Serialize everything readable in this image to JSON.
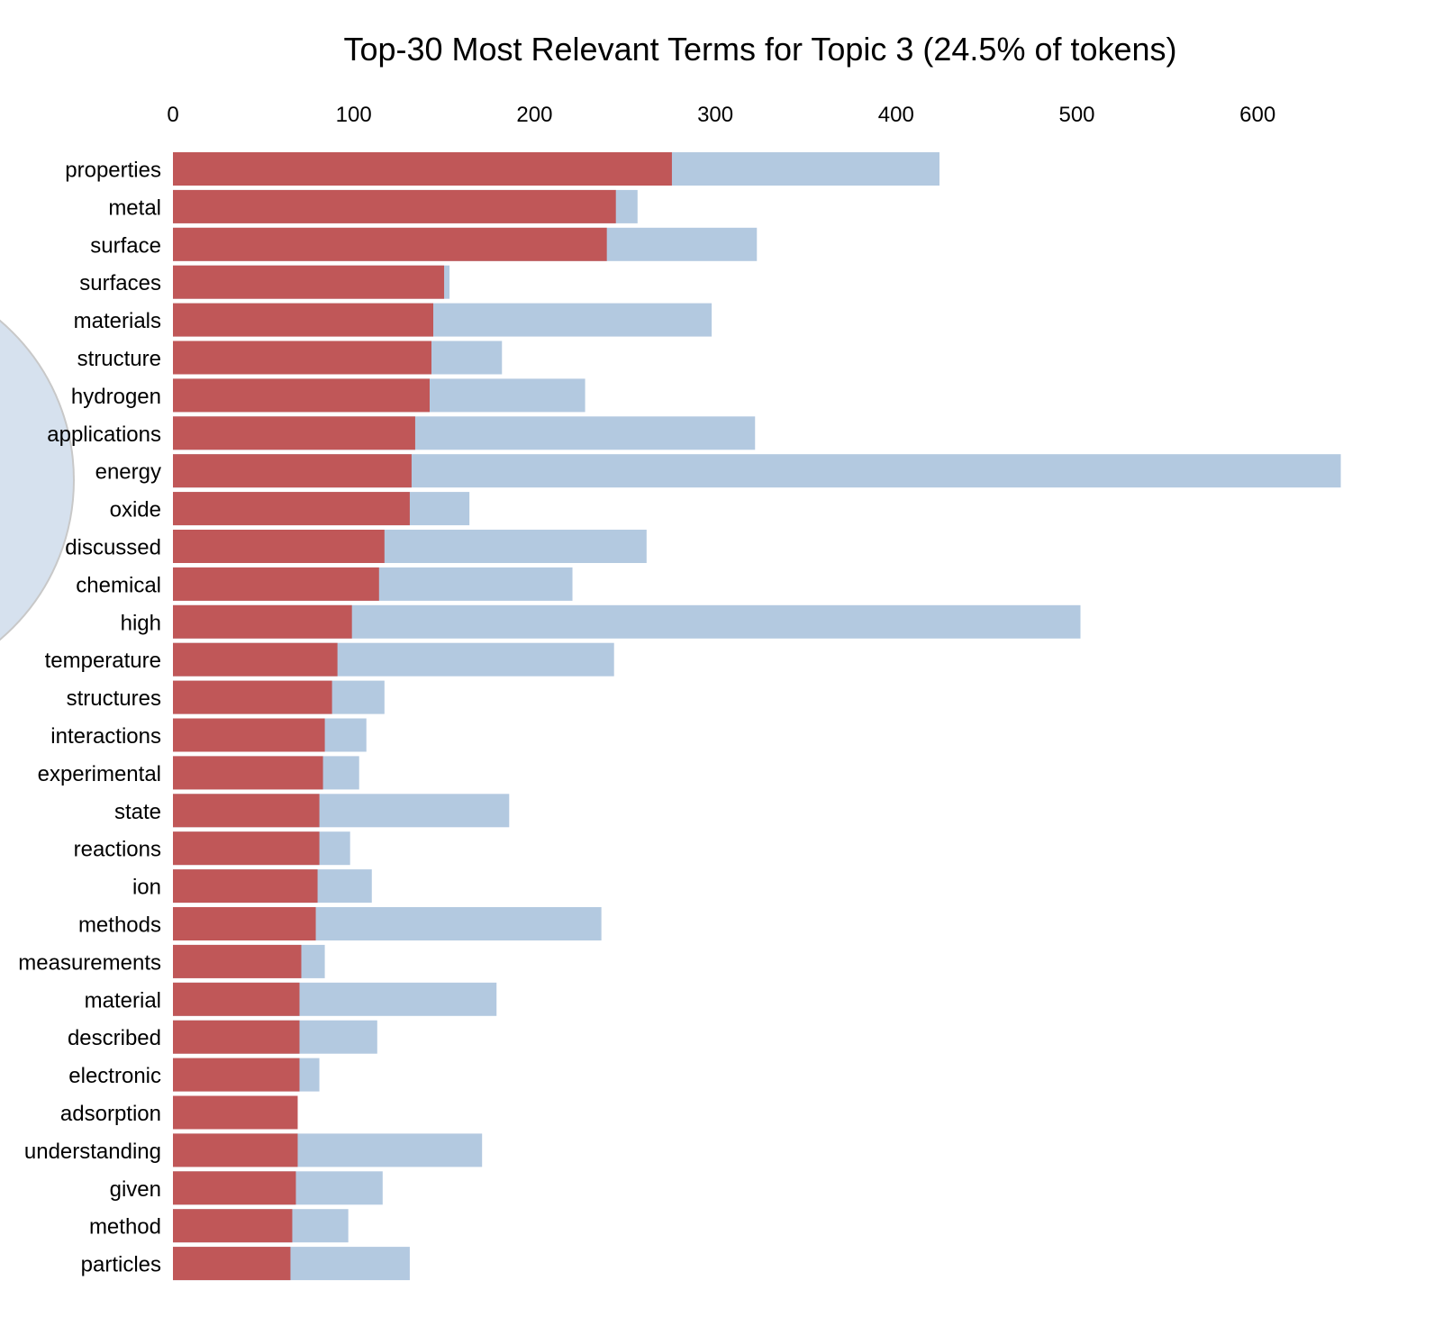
{
  "chart_data": {
    "type": "bar",
    "orientation": "horizontal",
    "stacked": false,
    "title": "Top-30 Most Relevant Terms for Topic 3 (24.5% of tokens)",
    "xlabel": "",
    "ylabel": "",
    "xlim": [
      0,
      650
    ],
    "x_ticks": [
      0,
      100,
      200,
      300,
      400,
      500,
      600
    ],
    "x_axis_position": "top",
    "grid": false,
    "legend": "none",
    "categories": [
      "properties",
      "metal",
      "surface",
      "surfaces",
      "materials",
      "structure",
      "hydrogen",
      "applications",
      "energy",
      "oxide",
      "discussed",
      "chemical",
      "high",
      "temperature",
      "structures",
      "interactions",
      "experimental",
      "state",
      "reactions",
      "ion",
      "methods",
      "measurements",
      "material",
      "described",
      "electronic",
      "adsorption",
      "understanding",
      "given",
      "method",
      "particles"
    ],
    "series": [
      {
        "color": "#b3c9e0",
        "values": [
          424,
          257,
          323,
          153,
          298,
          182,
          228,
          322,
          646,
          164,
          262,
          221,
          502,
          244,
          117,
          107,
          103,
          186,
          98,
          110,
          237,
          84,
          179,
          113,
          81,
          69,
          171,
          116,
          97,
          131
        ]
      },
      {
        "color": "#c05758",
        "values": [
          276,
          245,
          240,
          150,
          144,
          143,
          142,
          134,
          132,
          131,
          117,
          114,
          99,
          91,
          88,
          84,
          83,
          81,
          81,
          80,
          79,
          71,
          70,
          70,
          70,
          69,
          69,
          68,
          66,
          65
        ]
      }
    ]
  },
  "decoration": {
    "circle_fill": "#d6e1ee",
    "circle_stroke": "#c8c8c8"
  }
}
